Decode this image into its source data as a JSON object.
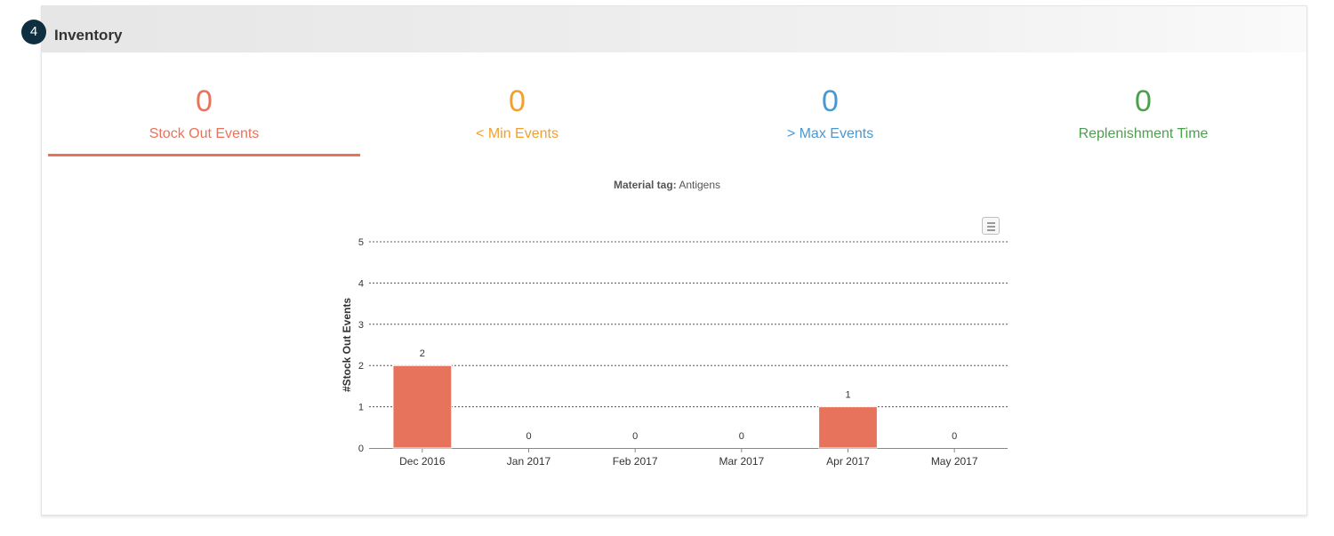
{
  "panel": {
    "step": "4",
    "title": "Inventory"
  },
  "tabs": [
    {
      "value": "0",
      "label": "Stock Out Events",
      "color": "#e8735c",
      "active": true
    },
    {
      "value": "0",
      "label": "< Min Events",
      "color": "#f0a031",
      "active": false
    },
    {
      "value": "0",
      "label": "> Max Events",
      "color": "#4a98cf",
      "active": false
    },
    {
      "value": "0",
      "label": "Replenishment Time",
      "color": "#4e9e50",
      "active": false
    }
  ],
  "chart_data": {
    "type": "bar",
    "subtitle_label": "Material tag:",
    "subtitle_value": "Antigens",
    "categories": [
      "Dec 2016",
      "Jan 2017",
      "Feb 2017",
      "Mar 2017",
      "Apr 2017",
      "May 2017"
    ],
    "values": [
      2,
      0,
      0,
      0,
      1,
      0
    ],
    "data_labels": [
      "2",
      "0",
      "0",
      "0",
      "1",
      "0"
    ],
    "ylabel": "#Stock Out Events",
    "ylim": [
      0,
      5
    ],
    "yticks": [
      "0",
      "1",
      "2",
      "3",
      "4",
      "5"
    ],
    "grid": true,
    "bar_color": "#e8735c",
    "menu_icon": "hamburger-menu-icon"
  }
}
